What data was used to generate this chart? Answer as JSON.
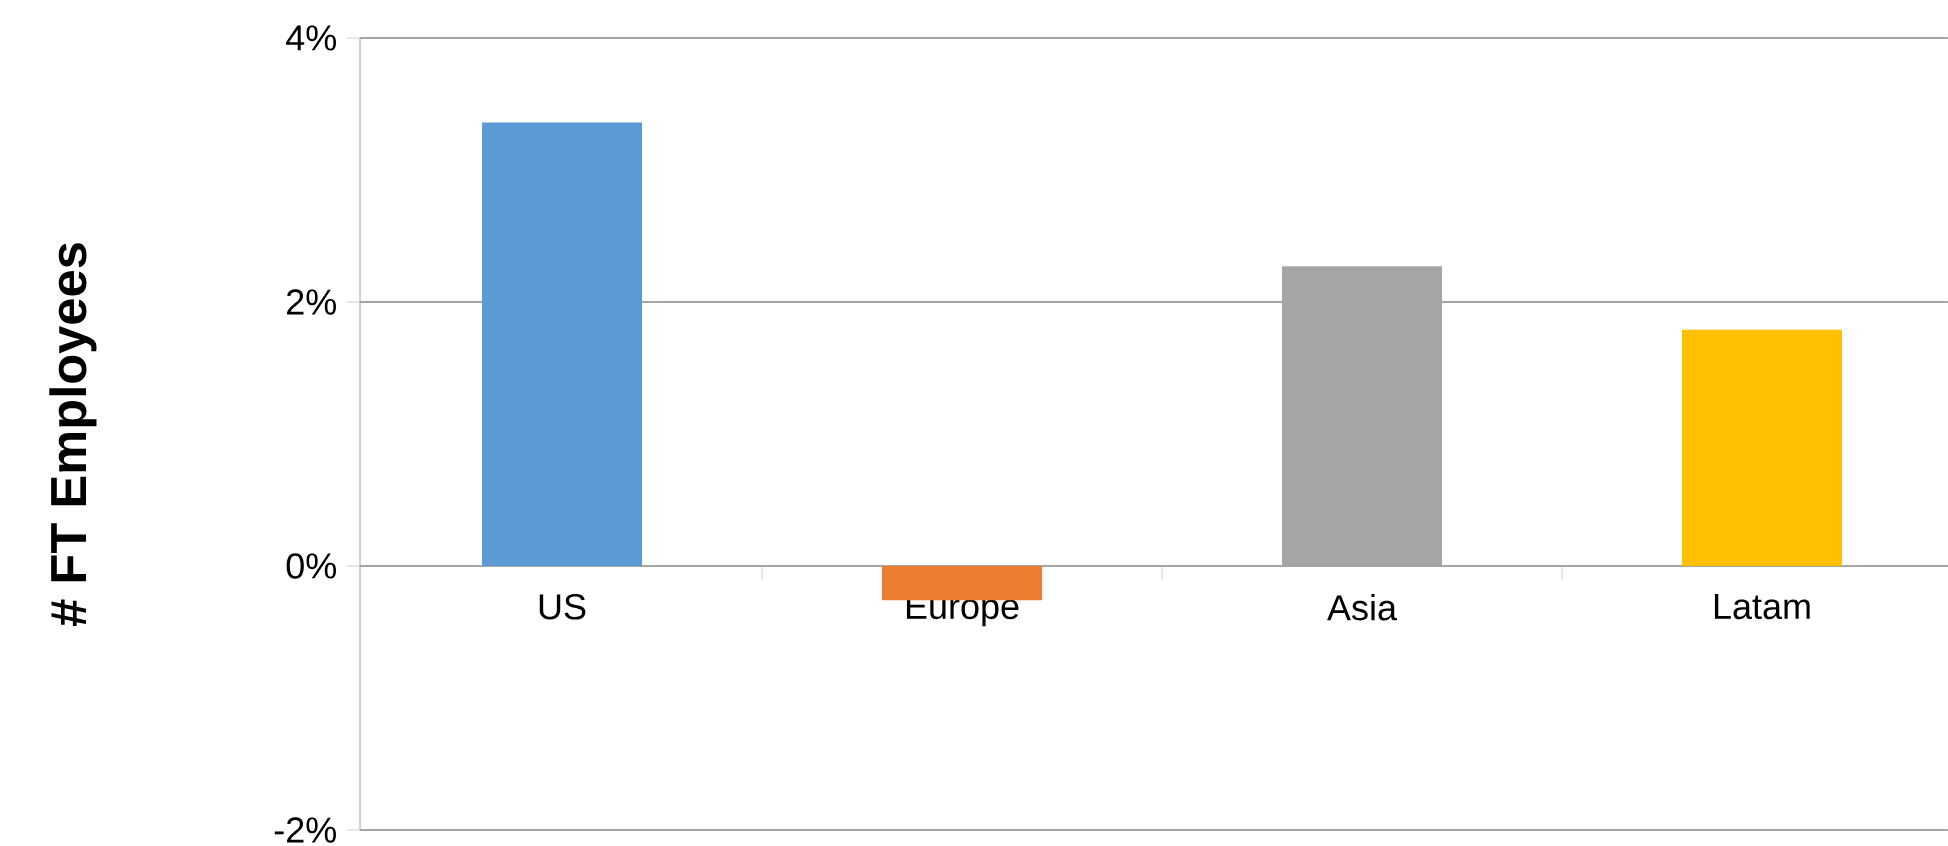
{
  "chart_data": {
    "type": "bar",
    "ylabel": "# FT Employees",
    "categories": [
      "US",
      "Europe",
      "Asia",
      "Latam"
    ],
    "values": [
      3.36,
      -0.26,
      2.27,
      1.79
    ],
    "colors": [
      "#5b9bd5",
      "#ed7d31",
      "#a5a5a5",
      "#ffc000"
    ],
    "ylim": [
      -2,
      4
    ],
    "yticks": [
      {
        "value": -2,
        "label": "-2%"
      },
      {
        "value": 0,
        "label": "0%"
      },
      {
        "value": 2,
        "label": "2%"
      },
      {
        "value": 4,
        "label": "4%"
      }
    ],
    "grid": "y"
  }
}
